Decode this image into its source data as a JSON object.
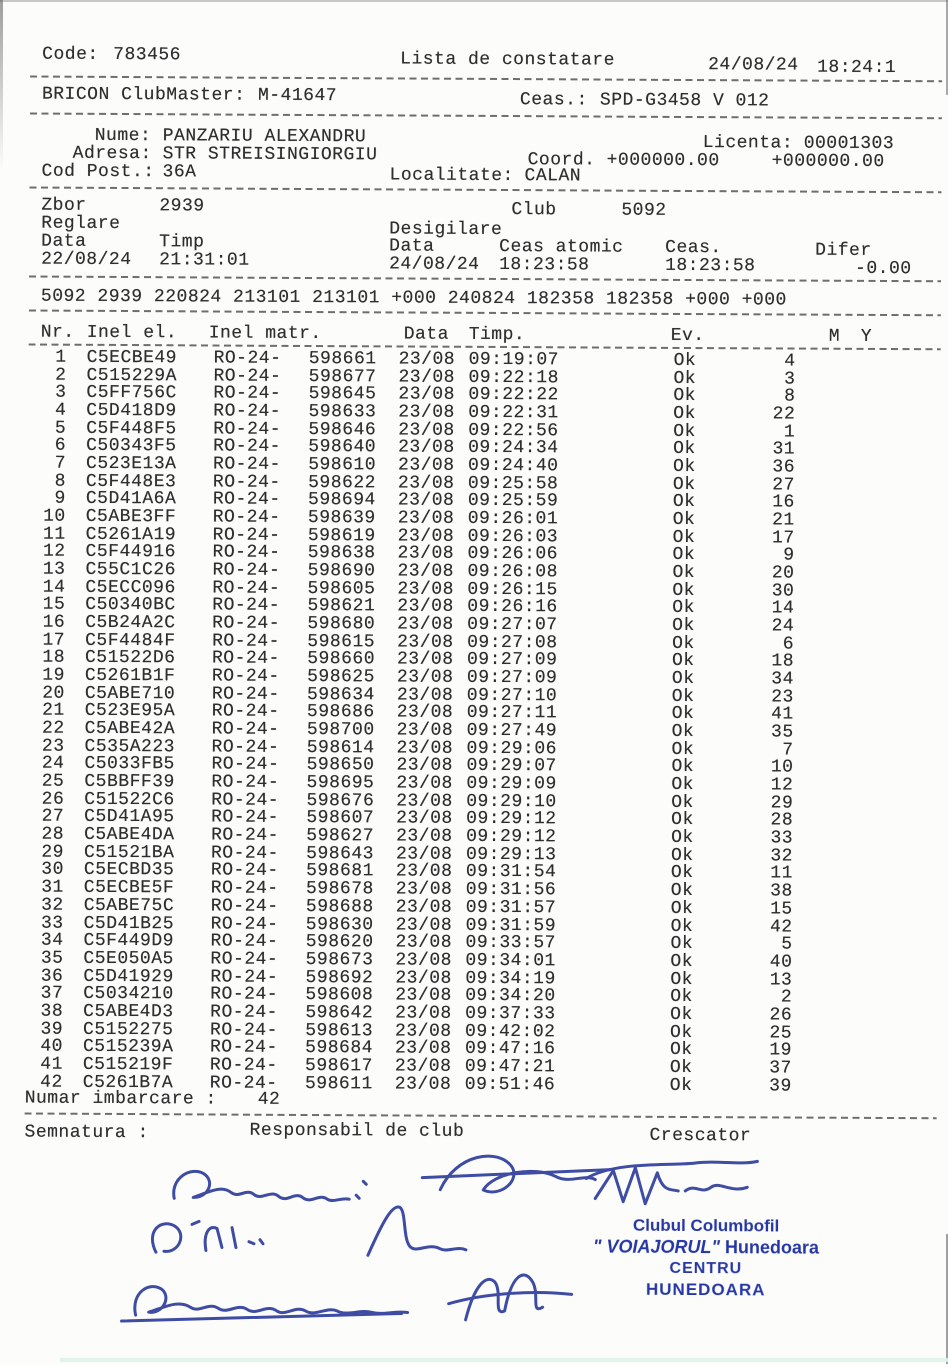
{
  "header": {
    "code_label": "Code:",
    "code_value": "783456",
    "title": "Lista de constatare",
    "date": "24/08/24",
    "time": "18:24:1",
    "device_label": "BRICON ClubMaster:",
    "device_value": "M-41647",
    "clock_label": "Ceas.:",
    "clock_value": "SPD-G3458 V 012"
  },
  "owner": {
    "name_label": "Nume:",
    "name": "PANZARIU ALEXANDRU",
    "license_label": "Licenta:",
    "license": "00001303",
    "address_label": "Adresa:",
    "address": "STR STREISINGIORGIU",
    "coord_label": "Coord.",
    "coord1": "+000000.00",
    "coord2": "+000000.00",
    "postcode_label": "Cod Post.:",
    "postcode": "36A",
    "locality_label": "Localitate:",
    "locality": "CALAN"
  },
  "flight": {
    "zbor_label": "Zbor",
    "zbor_value": "2939",
    "club_label": "Club",
    "club_value": "5092",
    "reglare_label": "Reglare",
    "desigilare_label": "Desigilare",
    "reg_data_label": "Data",
    "reg_timp_label": "Timp",
    "reg_data": "22/08/24",
    "reg_timp": "21:31:01",
    "des_data_label": "Data",
    "des_atomic_label": "Ceas atomic",
    "des_ceas_label": "Ceas.",
    "des_difer_label": "Difer",
    "des_data": "24/08/24",
    "des_atomic": "18:23:58",
    "des_ceas": "18:23:58",
    "des_difer": "-0.00",
    "summary_line": "5092 2939 220824 213101 213101 +000 240824 182358 182358 +000 +000"
  },
  "table": {
    "headers": {
      "nr": "Nr.",
      "inel_el": "Inel el.",
      "inel_matr": "Inel matr.",
      "data": "Data",
      "timp": "Timp.",
      "ev": "Ev.",
      "m": "M",
      "y": "Y"
    },
    "ring_prefix": "RO-24-",
    "date": "23/08",
    "ev": "Ok",
    "rows": [
      [
        1,
        "C5ECBE49",
        "598661",
        "09:19:07",
        4
      ],
      [
        2,
        "C515229A",
        "598677",
        "09:22:18",
        3
      ],
      [
        3,
        "C5FF756C",
        "598645",
        "09:22:22",
        8
      ],
      [
        4,
        "C5D418D9",
        "598633",
        "09:22:31",
        22
      ],
      [
        5,
        "C5F448F5",
        "598646",
        "09:22:56",
        1
      ],
      [
        6,
        "C50343F5",
        "598640",
        "09:24:34",
        31
      ],
      [
        7,
        "C523E13A",
        "598610",
        "09:24:40",
        36
      ],
      [
        8,
        "C5F448E3",
        "598622",
        "09:25:58",
        27
      ],
      [
        9,
        "C5D41A6A",
        "598694",
        "09:25:59",
        16
      ],
      [
        10,
        "C5ABE3FF",
        "598639",
        "09:26:01",
        21
      ],
      [
        11,
        "C5261A19",
        "598619",
        "09:26:03",
        17
      ],
      [
        12,
        "C5F44916",
        "598638",
        "09:26:06",
        9
      ],
      [
        13,
        "C55C1C26",
        "598690",
        "09:26:08",
        20
      ],
      [
        14,
        "C5ECC096",
        "598605",
        "09:26:15",
        30
      ],
      [
        15,
        "C50340BC",
        "598621",
        "09:26:16",
        14
      ],
      [
        16,
        "C5B24A2C",
        "598680",
        "09:27:07",
        24
      ],
      [
        17,
        "C5F4484F",
        "598615",
        "09:27:08",
        6
      ],
      [
        18,
        "C51522D6",
        "598660",
        "09:27:09",
        18
      ],
      [
        19,
        "C5261B1F",
        "598625",
        "09:27:09",
        34
      ],
      [
        20,
        "C5ABE710",
        "598634",
        "09:27:10",
        23
      ],
      [
        21,
        "C523E95A",
        "598686",
        "09:27:11",
        41
      ],
      [
        22,
        "C5ABE42A",
        "598700",
        "09:27:49",
        35
      ],
      [
        23,
        "C535A223",
        "598614",
        "09:29:06",
        7
      ],
      [
        24,
        "C5033FB5",
        "598650",
        "09:29:07",
        10
      ],
      [
        25,
        "C5BBFF39",
        "598695",
        "09:29:09",
        12
      ],
      [
        26,
        "C51522C6",
        "598676",
        "09:29:10",
        29
      ],
      [
        27,
        "C5D41A95",
        "598607",
        "09:29:12",
        28
      ],
      [
        28,
        "C5ABE4DA",
        "598627",
        "09:29:12",
        33
      ],
      [
        29,
        "C51521BA",
        "598643",
        "09:29:13",
        32
      ],
      [
        30,
        "C5ECBD35",
        "598681",
        "09:31:54",
        11
      ],
      [
        31,
        "C5ECBE5F",
        "598678",
        "09:31:56",
        38
      ],
      [
        32,
        "C5ABE75C",
        "598688",
        "09:31:57",
        15
      ],
      [
        33,
        "C5D41B25",
        "598630",
        "09:31:59",
        42
      ],
      [
        34,
        "C5F449D9",
        "598620",
        "09:33:57",
        5
      ],
      [
        35,
        "C5E050A5",
        "598673",
        "09:34:01",
        40
      ],
      [
        36,
        "C5D41929",
        "598692",
        "09:34:19",
        13
      ],
      [
        37,
        "C5034210",
        "598608",
        "09:34:20",
        2
      ],
      [
        38,
        "C5ABE4D3",
        "598642",
        "09:37:33",
        26
      ],
      [
        39,
        "C5152275",
        "598613",
        "09:42:02",
        25
      ],
      [
        40,
        "C515239A",
        "598684",
        "09:47:16",
        19
      ],
      [
        41,
        "C515219F",
        "598617",
        "09:47:21",
        37
      ],
      [
        42,
        "C5261B7A",
        "598611",
        "09:51:46",
        39
      ]
    ]
  },
  "footer": {
    "numar_label": "Numar imbarcare :",
    "numar_value": "42",
    "semnatura_label": "Semnatura :",
    "responsabil_label": "Responsabil de club",
    "crescator_label": "Crescator"
  },
  "stamp": {
    "line1": "Clubul Columbofil",
    "line2a": "\" VOIAJORUL\"",
    "line2b": " Hunedoara",
    "line3": "CENTRU",
    "line4": "HUNEDOARA",
    "color": "#1b2da1"
  },
  "ink_color": "#2b3a9b"
}
